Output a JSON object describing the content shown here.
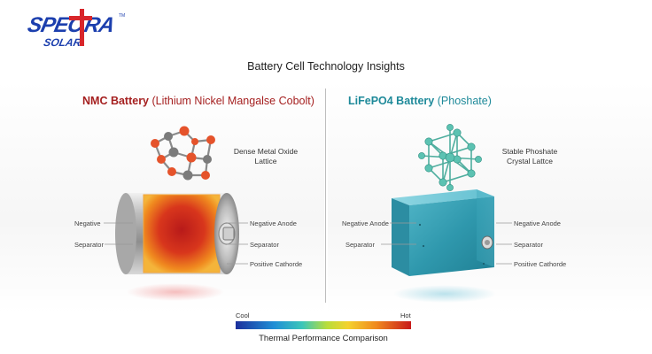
{
  "brand": {
    "logo_text_top": "SPECTRA",
    "logo_text_bottom": "SOLAR",
    "logo_mark": "TM",
    "colors": {
      "blue": "#1c3fae",
      "red": "#d8262b"
    }
  },
  "title": "Battery Cell Technology Insights",
  "left_panel": {
    "heading_strong": "NMC Battery",
    "heading_sub": "(Lithium Nickel Mangalse Cobolt)",
    "heading_color": "#a52020",
    "lattice_label_line1": "Dense Metal Oxide",
    "lattice_label_line2": "Lattice",
    "callouts_left": [
      "Negative",
      "Separator"
    ],
    "callouts_right": [
      "Negative Anode",
      "Separator",
      "Positive Cathorde"
    ]
  },
  "right_panel": {
    "heading_strong": "LiFePO4 Battery",
    "heading_sub": "(Phoshate)",
    "heading_color": "#1f8a9a",
    "lattice_label_line1": "Stable Phoshate",
    "lattice_label_line2": "Crystal Lattce",
    "callouts_left": [
      "Negative Anode",
      "Separator"
    ],
    "callouts_right": [
      "Negative Anode",
      "Separator",
      "Positive Cathorde"
    ]
  },
  "legend": {
    "cool_label": "Cool",
    "hot_label": "Hot",
    "caption": "Thermal Performance Comparison",
    "gradient_colors": [
      "#1b2f9c",
      "#1f8fd6",
      "#3cc6b9",
      "#b8dd3a",
      "#f4d22c",
      "#f08a1f",
      "#c81a1a"
    ]
  }
}
